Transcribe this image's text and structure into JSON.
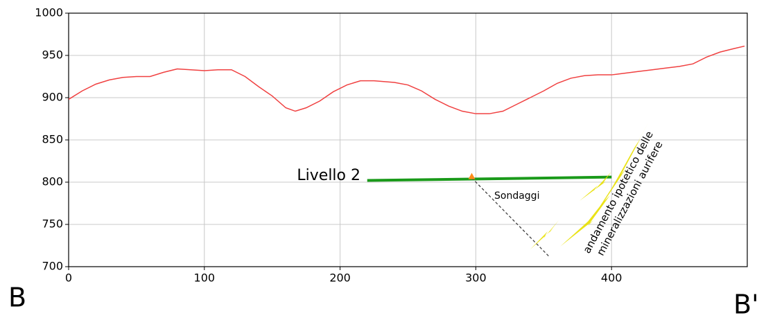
{
  "chart_data": {
    "type": "line",
    "xlim": [
      0,
      500
    ],
    "xticks": [
      0,
      100,
      200,
      300,
      400
    ],
    "ylim": [
      700,
      1000
    ],
    "yticks": [
      700,
      750,
      800,
      850,
      900,
      950,
      1000
    ],
    "grid": true,
    "series": [
      {
        "color": "#f04040",
        "style": "solid",
        "width": 1.5,
        "x": [
          0,
          10,
          20,
          30,
          40,
          50,
          60,
          70,
          80,
          90,
          100,
          110,
          120,
          130,
          140,
          150,
          160,
          167,
          175,
          185,
          195,
          205,
          215,
          225,
          240,
          250,
          260,
          270,
          280,
          290,
          300,
          310,
          320,
          330,
          340,
          350,
          360,
          370,
          380,
          390,
          400,
          410,
          420,
          430,
          440,
          450,
          460,
          470,
          480,
          490,
          498
        ],
        "values": [
          898,
          908,
          916,
          921,
          924,
          925,
          925,
          930,
          934,
          933,
          932,
          933,
          933,
          925,
          913,
          902,
          888,
          884,
          888,
          896,
          907,
          915,
          920,
          920,
          918,
          915,
          908,
          898,
          890,
          884,
          881,
          881,
          884,
          892,
          900,
          908,
          917,
          923,
          926,
          927,
          927,
          929,
          931,
          933,
          935,
          937,
          940,
          948,
          954,
          958,
          961
        ]
      },
      {
        "color": "#1a9a1a",
        "style": "solid",
        "width": 4,
        "x": [
          220,
          400
        ],
        "values": [
          802,
          806
        ]
      },
      {
        "color": "#404040",
        "style": "dashed",
        "width": 1.3,
        "x": [
          297,
          354
        ],
        "values": [
          805,
          712
        ]
      },
      {
        "color": "#ff8c1a",
        "style": "marker",
        "x": [
          297
        ],
        "values": [
          806
        ]
      }
    ],
    "annotations": {
      "level": "Livello 2",
      "drill": "Sondaggi",
      "mineral": [
        "andamento ipotetico delle",
        "mineralizzazioni aurifere"
      ],
      "start": "B",
      "end": "B'"
    }
  }
}
